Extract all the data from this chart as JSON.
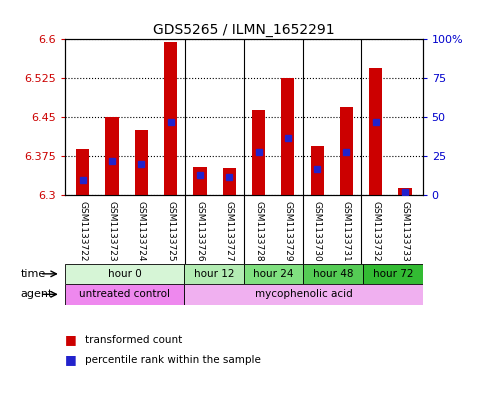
{
  "title": "GDS5265 / ILMN_1652291",
  "samples": [
    "GSM1133722",
    "GSM1133723",
    "GSM1133724",
    "GSM1133725",
    "GSM1133726",
    "GSM1133727",
    "GSM1133728",
    "GSM1133729",
    "GSM1133730",
    "GSM1133731",
    "GSM1133732",
    "GSM1133733"
  ],
  "bar_base": 6.3,
  "transformed_counts": [
    6.39,
    6.45,
    6.425,
    6.595,
    6.355,
    6.352,
    6.465,
    6.525,
    6.395,
    6.47,
    6.545,
    6.315
  ],
  "percentile_ranks": [
    10,
    22,
    20,
    47,
    13,
    12,
    28,
    37,
    17,
    28,
    47,
    2
  ],
  "ylim_left": [
    6.3,
    6.6
  ],
  "ylim_right": [
    0,
    100
  ],
  "yticks_left": [
    6.3,
    6.375,
    6.45,
    6.525,
    6.6
  ],
  "yticks_right": [
    0,
    25,
    50,
    75,
    100
  ],
  "bar_color": "#cc0000",
  "percentile_color": "#2222cc",
  "time_groups": [
    {
      "label": "hour 0",
      "start": 0,
      "end": 4,
      "color": "#d6f5d6"
    },
    {
      "label": "hour 12",
      "start": 4,
      "end": 6,
      "color": "#b3ecb3"
    },
    {
      "label": "hour 24",
      "start": 6,
      "end": 8,
      "color": "#80e080"
    },
    {
      "label": "hour 48",
      "start": 8,
      "end": 10,
      "color": "#55cc55"
    },
    {
      "label": "hour 72",
      "start": 10,
      "end": 12,
      "color": "#33bb33"
    }
  ],
  "agent_groups": [
    {
      "label": "untreated control",
      "start": 0,
      "end": 4,
      "color": "#ee88ee"
    },
    {
      "label": "mycophenolic acid",
      "start": 4,
      "end": 12,
      "color": "#f0b0f0"
    }
  ],
  "background_color": "#ffffff",
  "plot_bg_color": "#ffffff",
  "tick_color_left": "#cc0000",
  "tick_color_right": "#0000cc",
  "sample_bg_color": "#c8c8c8",
  "separator_color": "#888888"
}
